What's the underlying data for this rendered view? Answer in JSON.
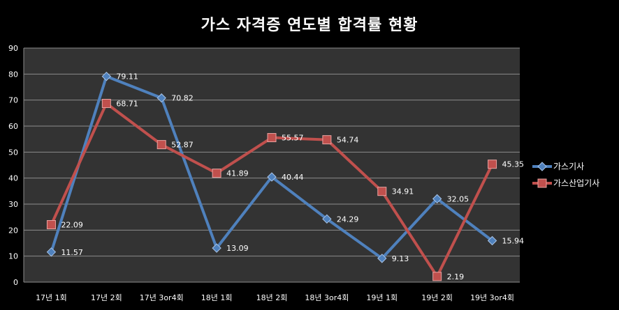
{
  "chart_data": {
    "type": "line",
    "title": "가스 자격증 연도별 합격률 현황",
    "categories": [
      "17년 1회",
      "17년 2회",
      "17년 3or4회",
      "18년 1회",
      "18년 2회",
      "18년 3or4회",
      "19년 1회",
      "19년 2회",
      "19년 3or4회"
    ],
    "series": [
      {
        "name": "가스기사",
        "values": [
          11.57,
          79.11,
          70.82,
          13.09,
          40.44,
          24.29,
          9.13,
          32.05,
          15.94
        ],
        "color": "#4f81bd",
        "marker": "diamond"
      },
      {
        "name": "가스산업기사",
        "values": [
          22.09,
          68.71,
          52.87,
          41.89,
          55.57,
          54.74,
          34.91,
          2.19,
          45.35
        ],
        "color": "#c0504d",
        "marker": "square"
      }
    ],
    "ylim": [
      0,
      90
    ],
    "yticks": [
      0,
      10,
      20,
      30,
      40,
      50,
      60,
      70,
      80,
      90
    ],
    "grid": true,
    "legend_position": "right",
    "plot_background": "#333333",
    "gridline_color": "#8c8c8c"
  }
}
